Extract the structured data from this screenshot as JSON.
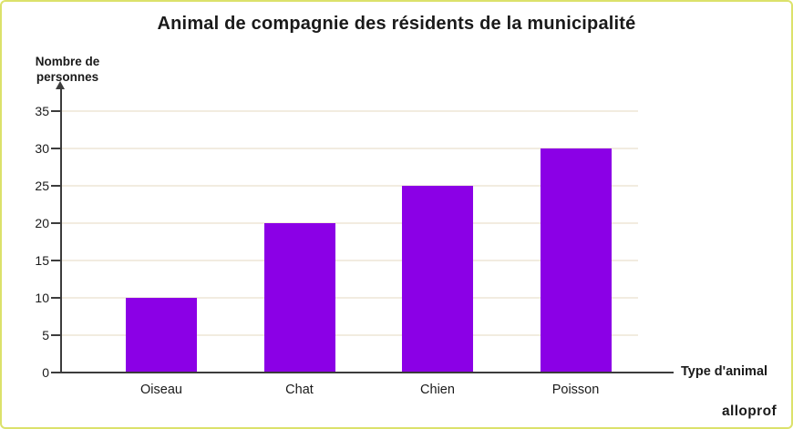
{
  "chart_data": {
    "type": "bar",
    "title": "Animal de compagnie des résidents de la municipalité",
    "categories": [
      "Oiseau",
      "Chat",
      "Chien",
      "Poisson"
    ],
    "values": [
      10,
      20,
      25,
      30
    ],
    "xlabel": "Type d'animal",
    "ylabel": "Nombre de\npersonnes",
    "ylim": [
      0,
      35
    ],
    "ytick_step": 5,
    "grid": true,
    "legend": "none"
  },
  "branding": {
    "logo_text": "alloprof"
  },
  "colors": {
    "bar": "#8b00e6",
    "frame_border": "#dce26b",
    "gridline": "#f2ece0",
    "axis": "#3c3c3c",
    "text": "#1a1a1a"
  }
}
